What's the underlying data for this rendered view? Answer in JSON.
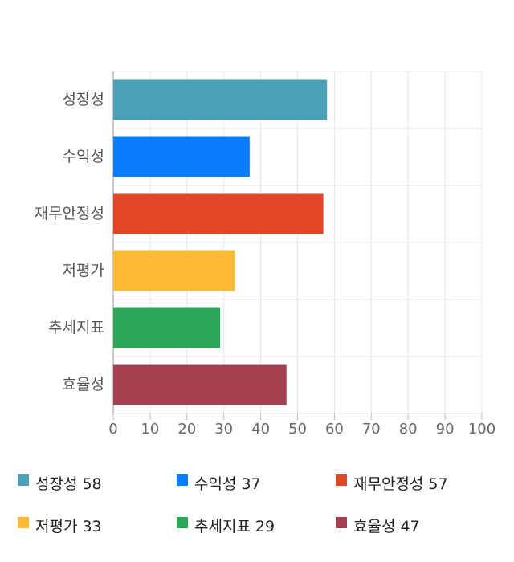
{
  "chart_data": {
    "type": "bar",
    "orientation": "horizontal",
    "categories": [
      "성장성",
      "수익성",
      "재무안정성",
      "저평가",
      "추세지표",
      "효율성"
    ],
    "values": [
      58,
      37,
      57,
      33,
      29,
      47
    ],
    "colors": [
      "#4aa0b9",
      "#0a7bff",
      "#e24625",
      "#fdb933",
      "#2aa757",
      "#a6404e"
    ],
    "xlim": [
      0,
      100
    ],
    "xticks": [
      0,
      10,
      20,
      30,
      40,
      50,
      60,
      70,
      80,
      90,
      100
    ],
    "grid": true,
    "legend": "bottom"
  }
}
